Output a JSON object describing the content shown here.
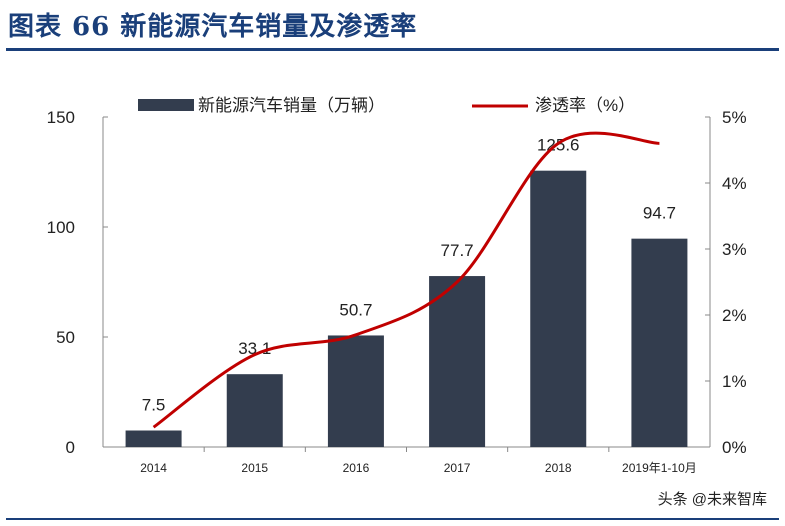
{
  "title": "图表 66   新能源汽车销量及渗透率",
  "watermark": "头条 @未来智库",
  "chart_data": {
    "type": "bar+line",
    "categories": [
      "2014",
      "2015",
      "2016",
      "2017",
      "2018",
      "2019年1-10月"
    ],
    "series": [
      {
        "name": "新能源汽车销量（万辆）",
        "type": "bar",
        "axis": "left",
        "color": "#333d4e",
        "values": [
          7.5,
          33.1,
          50.7,
          77.7,
          125.6,
          94.7
        ],
        "labels": [
          "7.5",
          "33.1",
          "50.7",
          "77.7",
          "125.6",
          "94.7"
        ]
      },
      {
        "name": "渗透率（%）",
        "type": "line",
        "axis": "right",
        "color": "#c00000",
        "values": [
          0.3,
          1.4,
          1.7,
          2.5,
          4.6,
          4.6
        ]
      }
    ],
    "left_axis": {
      "ylim": [
        0,
        150
      ],
      "ticks": [
        "0",
        "50",
        "100",
        "150"
      ]
    },
    "right_axis": {
      "ylim": [
        0,
        5
      ],
      "ticks": [
        "0%",
        "1%",
        "2%",
        "3%",
        "4%",
        "5%"
      ]
    },
    "legend": "top",
    "grid": false
  }
}
